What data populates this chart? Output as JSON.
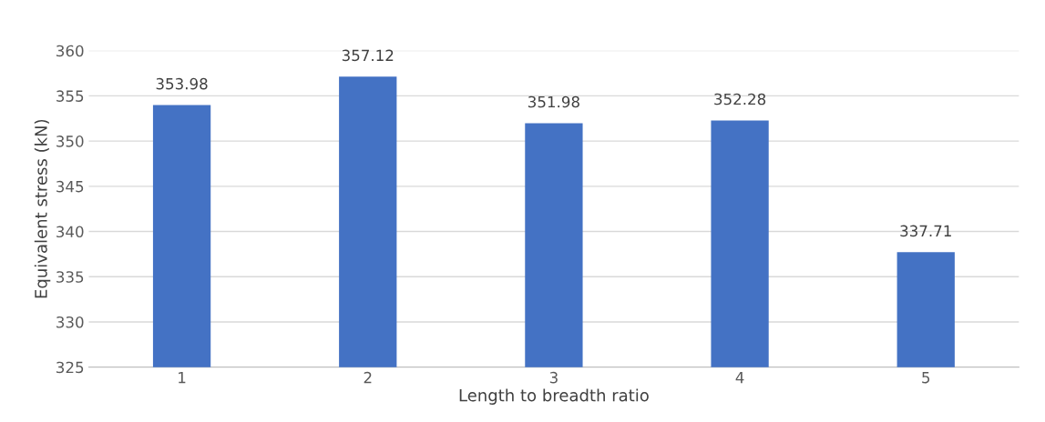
{
  "chart_data": {
    "type": "bar",
    "xlabel": "Length to breadth ratio",
    "ylabel": "Equivalent stress (kN)",
    "categories": [
      "1",
      "2",
      "3",
      "4",
      "5"
    ],
    "values": [
      353.98,
      357.12,
      351.98,
      352.28,
      337.71
    ],
    "color": "#4472c4",
    "ylim": [
      325,
      360
    ],
    "yticks": [
      325,
      330,
      335,
      340,
      345,
      350,
      355,
      360
    ],
    "grid": "y",
    "data_labels": true
  }
}
